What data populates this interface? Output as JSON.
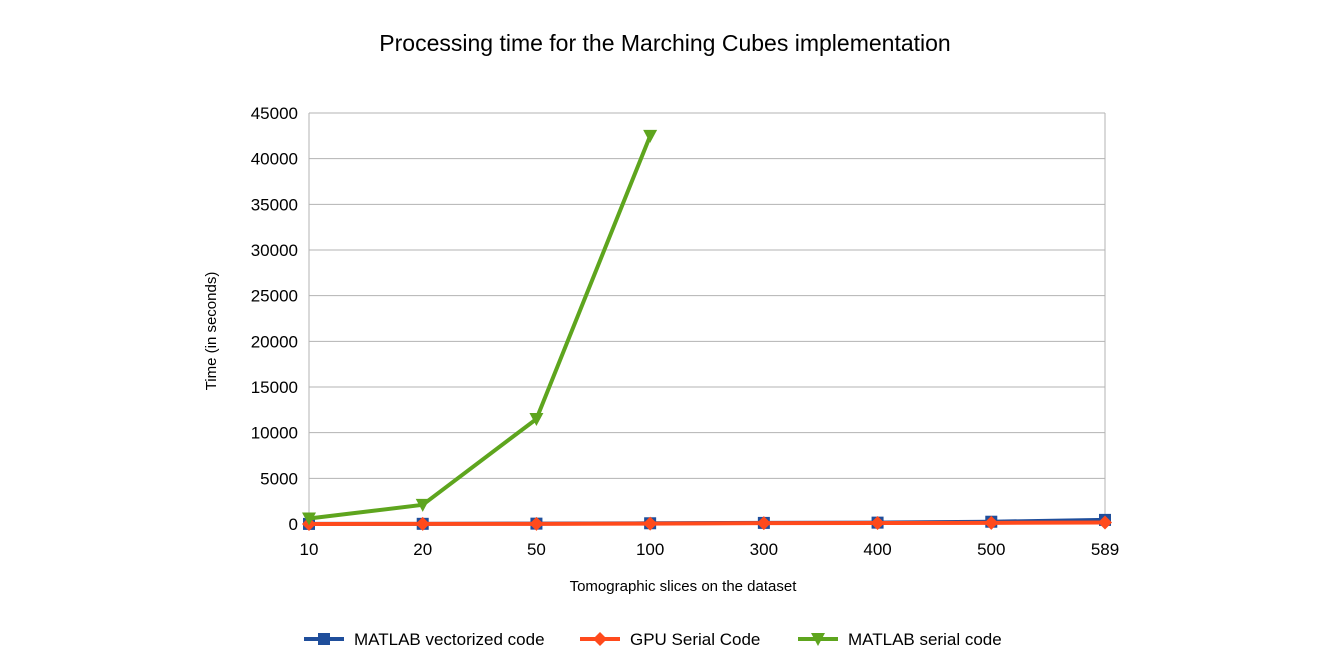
{
  "chart_data": {
    "type": "line",
    "title": "Processing time for the Marching Cubes implementation",
    "xlabel": "Tomographic slices on the dataset",
    "ylabel": "Time (in seconds)",
    "categories": [
      "10",
      "20",
      "50",
      "100",
      "300",
      "400",
      "500",
      "589"
    ],
    "ylim": [
      0,
      45000
    ],
    "yticks": [
      "0",
      "5000",
      "10000",
      "15000",
      "20000",
      "25000",
      "30000",
      "35000",
      "40000",
      "45000"
    ],
    "grid": true,
    "legend_position": "bottom",
    "series": [
      {
        "name": "MATLAB vectorized code",
        "color": "#1f4e9b",
        "marker": "square",
        "values": [
          10,
          20,
          40,
          80,
          120,
          150,
          250,
          450
        ]
      },
      {
        "name": "GPU Serial Code",
        "color": "#ff4a1c",
        "marker": "diamond",
        "values": [
          5,
          10,
          20,
          40,
          90,
          110,
          130,
          160
        ]
      },
      {
        "name": "MATLAB serial code",
        "color": "#5ea51e",
        "marker": "triangle-down",
        "values": [
          600,
          2100,
          11500,
          42500,
          null,
          null,
          null,
          null
        ]
      }
    ]
  }
}
